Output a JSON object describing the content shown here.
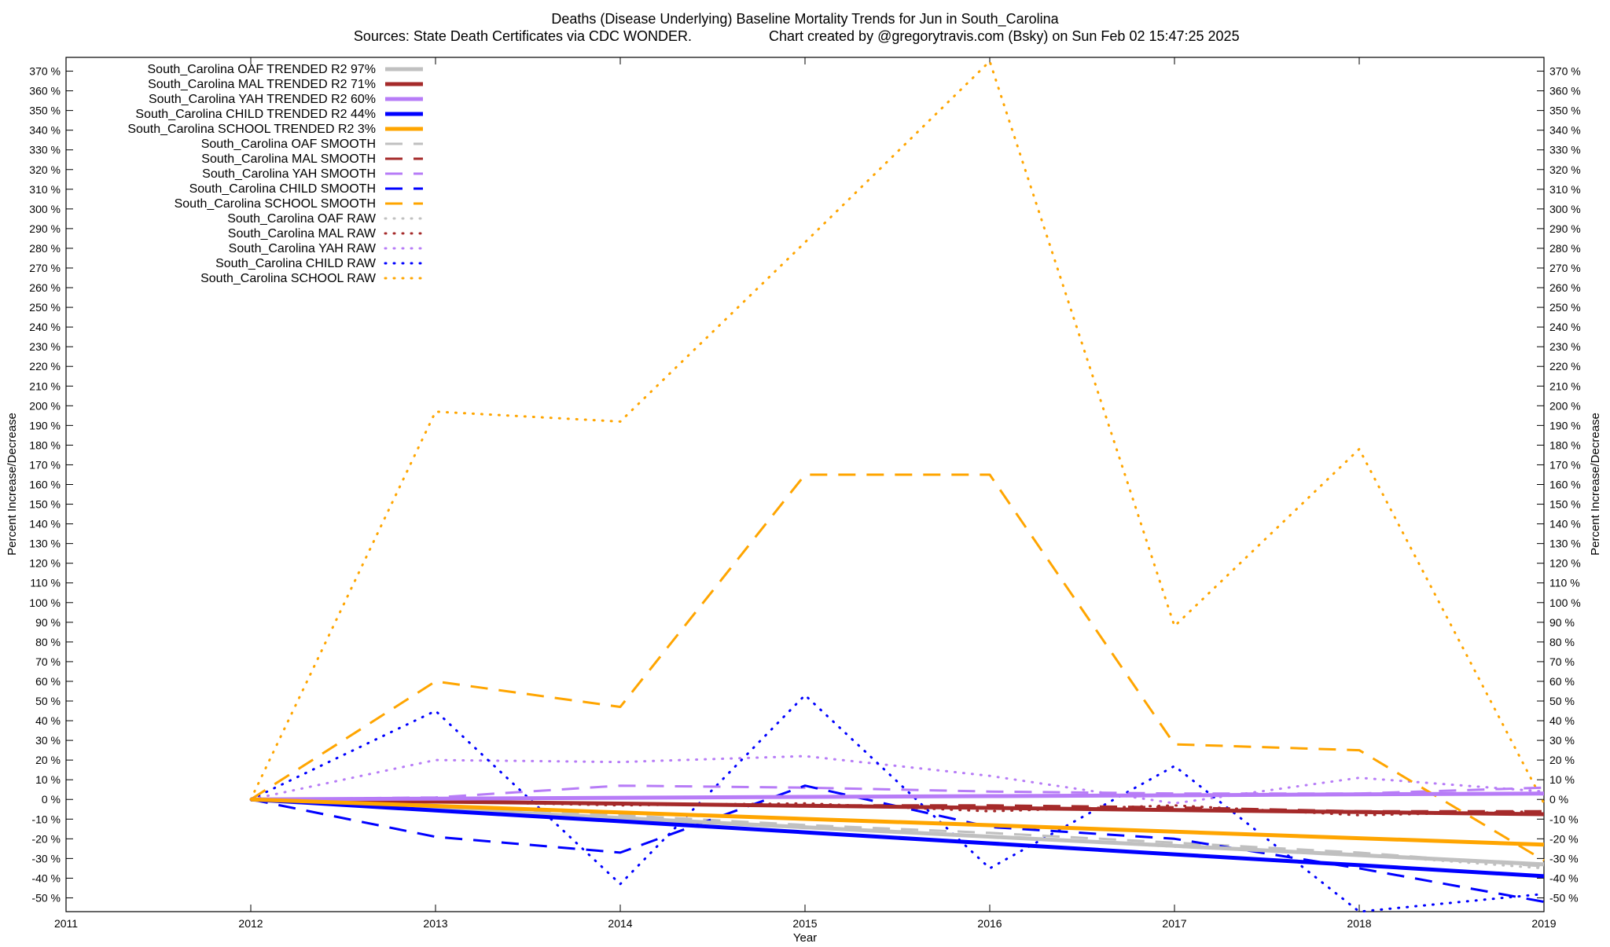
{
  "chart_data": {
    "type": "line",
    "title_line1": "Deaths (Disease Underlying)  Baseline Mortality Trends for Jun in South_Carolina",
    "title_line2_left": "Sources: State Death Certificates via CDC WONDER.",
    "title_line2_right": "Chart created by @gregorytravis.com (Bsky) on Sun Feb 02 15:47:25 2025",
    "xlabel": "Year",
    "ylabel_left": "Percent Increase/Decrease",
    "ylabel_right": "Percent Increase/Decrease",
    "xlim": [
      2011,
      2019
    ],
    "ylim": [
      -57,
      377
    ],
    "x_ticks": [
      2011,
      2012,
      2013,
      2014,
      2015,
      2016,
      2017,
      2018,
      2019
    ],
    "x_tick_labels": [
      "2011",
      "2012",
      "2013",
      "2014",
      "2015",
      "2016",
      "2017",
      "2018",
      "2019"
    ],
    "y_ticks": [
      370,
      360,
      350,
      340,
      330,
      320,
      310,
      300,
      290,
      280,
      270,
      260,
      250,
      240,
      230,
      220,
      210,
      200,
      190,
      180,
      170,
      160,
      150,
      140,
      130,
      120,
      110,
      100,
      90,
      80,
      70,
      60,
      50,
      40,
      30,
      20,
      10,
      0,
      -10,
      -20,
      -30,
      -40,
      -50
    ],
    "y_tick_labels": [
      "370 %",
      "360 %",
      "350 %",
      "340 %",
      "330 %",
      "320 %",
      "310 %",
      "300 %",
      "290 %",
      "280 %",
      "270 %",
      "260 %",
      "250 %",
      "240 %",
      "230 %",
      "220 %",
      "210 %",
      "200 %",
      "190 %",
      "180 %",
      "170 %",
      "160 %",
      "150 %",
      "140 %",
      "130 %",
      "120 %",
      "110 %",
      "100 %",
      "90 %",
      "80 %",
      "70 %",
      "60 %",
      "50 %",
      "40 %",
      "30 %",
      "20 %",
      "10 %",
      "0 %",
      "-10 %",
      "-20 %",
      "-30 %",
      "-40 %",
      "-50 %"
    ],
    "legend_position": "top-left",
    "grid": false,
    "x": [
      2012,
      2013,
      2014,
      2015,
      2016,
      2017,
      2018,
      2019
    ],
    "series": [
      {
        "name": "South_Carolina OAF TRENDED R2  97%",
        "style": "solid",
        "color": "#c0c0c0",
        "values": [
          0,
          -4.7,
          -9.4,
          -14.1,
          -18.9,
          -23.6,
          -28.3,
          -33
        ]
      },
      {
        "name": "South_Carolina MAL TRENDED R2  71%",
        "style": "solid",
        "color": "#a52a2a",
        "values": [
          0,
          -1.1,
          -2.1,
          -3.2,
          -4.3,
          -5.4,
          -6.4,
          -7.5
        ]
      },
      {
        "name": "South_Carolina YAH TRENDED R2  60%",
        "style": "solid",
        "color": "#b77cf7",
        "values": [
          0,
          0.43,
          0.86,
          1.3,
          1.7,
          2.1,
          2.6,
          3
        ]
      },
      {
        "name": "South_Carolina CHILD TRENDED R2  44%",
        "style": "solid",
        "color": "#0000ff",
        "values": [
          0,
          -5.6,
          -11.1,
          -16.7,
          -22.3,
          -27.9,
          -33.4,
          -39
        ]
      },
      {
        "name": "South_Carolina SCHOOL TRENDED R2   3%",
        "style": "solid",
        "color": "#ffa500",
        "values": [
          0,
          -3.3,
          -6.6,
          -9.9,
          -13.1,
          -16.4,
          -19.7,
          -23
        ]
      },
      {
        "name": "South_Carolina OAF SMOOTH",
        "style": "dashed",
        "color": "#c0c0c0",
        "values": [
          0,
          -3,
          -8,
          -13,
          -17,
          -22,
          -27,
          -34
        ]
      },
      {
        "name": "South_Carolina MAL SMOOTH",
        "style": "dashed",
        "color": "#a52a2a",
        "values": [
          0,
          -1,
          -2,
          -3,
          -3,
          -4,
          -6,
          -6
        ]
      },
      {
        "name": "South_Carolina YAH SMOOTH",
        "style": "dashed",
        "color": "#b77cf7",
        "values": [
          0,
          1,
          7,
          6,
          4,
          3,
          3,
          6
        ]
      },
      {
        "name": "South_Carolina CHILD SMOOTH",
        "style": "dashed",
        "color": "#0000ff",
        "values": [
          0,
          -19,
          -27,
          7,
          -14,
          -20,
          -35,
          -52
        ]
      },
      {
        "name": "South_Carolina SCHOOL SMOOTH",
        "style": "dashed",
        "color": "#ffa500",
        "values": [
          0,
          60,
          47,
          165,
          165,
          28,
          25,
          -31
        ]
      },
      {
        "name": "South_Carolina OAF RAW",
        "style": "dotted",
        "color": "#c0c0c0",
        "values": [
          0,
          -4,
          -10,
          -14,
          -19,
          -24,
          -28,
          -35
        ]
      },
      {
        "name": "South_Carolina MAL RAW",
        "style": "dotted",
        "color": "#a52a2a",
        "values": [
          0,
          -1,
          -3,
          -2,
          -6,
          -3,
          -8,
          -6
        ]
      },
      {
        "name": "South_Carolina YAH RAW",
        "style": "dotted",
        "color": "#b77cf7",
        "values": [
          0,
          20,
          19,
          22,
          12,
          -2,
          11,
          4
        ]
      },
      {
        "name": "South_Carolina CHILD RAW",
        "style": "dotted",
        "color": "#0000ff",
        "values": [
          0,
          45,
          -43,
          53,
          -35,
          17,
          -57,
          -48
        ]
      },
      {
        "name": "South_Carolina SCHOOL RAW",
        "style": "dotted",
        "color": "#ffa500",
        "values": [
          0,
          197,
          192,
          283,
          375,
          88,
          178,
          -2
        ]
      }
    ]
  }
}
